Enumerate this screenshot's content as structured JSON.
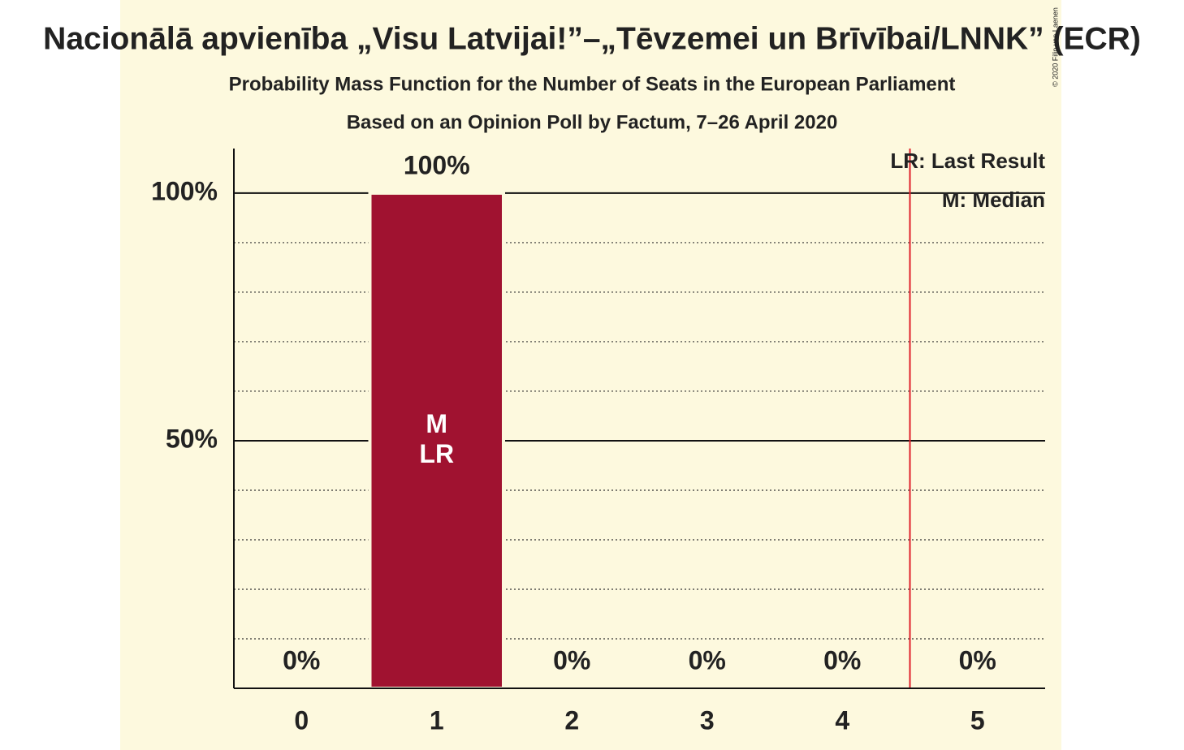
{
  "chart_data": {
    "type": "bar",
    "title": "Nacionālā apvienība „Visu Latvijai!”–„Tēvzemei un Brīvībai/LNNK” (ECR)",
    "subtitle": "Probability Mass Function for the Number of Seats in the European Parliament",
    "subtitle2": "Based on an Opinion Poll by Factum, 7–26 April 2020",
    "copyright": "© 2020 Filip van Laenen",
    "categories": [
      "0",
      "1",
      "2",
      "3",
      "4",
      "5"
    ],
    "values": [
      0,
      100,
      0,
      0,
      0,
      0
    ],
    "value_labels": [
      "0%",
      "100%",
      "0%",
      "0%",
      "0%",
      "0%"
    ],
    "color": "#a01230",
    "ylim": [
      0,
      109
    ],
    "yticks": [
      {
        "value": 50,
        "label": "50%"
      },
      {
        "value": 100,
        "label": "100%"
      }
    ],
    "minor_yticks": [
      10,
      20,
      30,
      40,
      60,
      70,
      80,
      90
    ],
    "grid": true,
    "threshold_x": 4.5,
    "threshold_color": "#e0202a",
    "bar_annotations": [
      {
        "index": 1,
        "lines": [
          "M",
          "LR"
        ]
      }
    ],
    "legend": [
      "LR: Last Result",
      "M: Median"
    ],
    "legend_position": "top-right"
  }
}
